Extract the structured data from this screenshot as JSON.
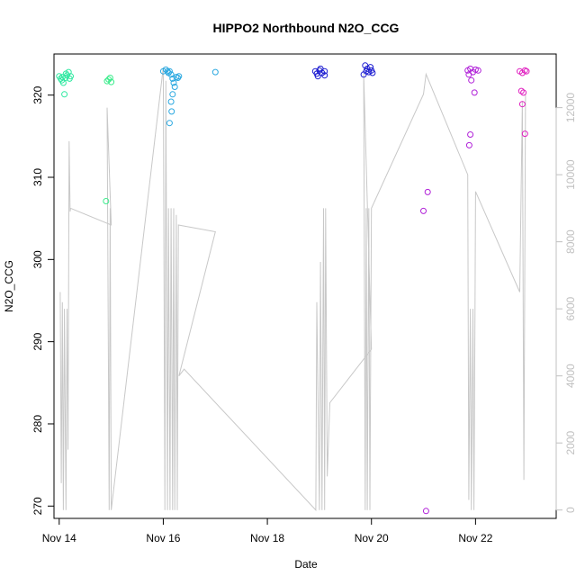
{
  "chart_data": {
    "type": "scatter",
    "title": "HIPPO2 Northbound N2O_CCG",
    "xlabel": "Date",
    "ylabel": "N2O_CCG",
    "x_unit": "days in November (day-of-month)",
    "xlim": [
      13.9,
      23.55
    ],
    "ylim": [
      268.5,
      325.0
    ],
    "x_ticks": [
      14,
      16,
      18,
      20,
      22
    ],
    "x_tick_labels": [
      "Nov 14",
      "Nov 16",
      "Nov 18",
      "Nov 20",
      "Nov 22"
    ],
    "y_ticks": [
      270,
      280,
      290,
      300,
      310,
      320
    ],
    "y_tick_labels": [
      "270",
      "280",
      "290",
      "300",
      "310",
      "320"
    ],
    "y2_ylim": [
      -250,
      13600
    ],
    "y2_ticks": [
      0,
      2000,
      4000,
      6000,
      8000,
      10000,
      12000
    ],
    "y2_tick_labels": [
      "0",
      "2000",
      "4000",
      "6000",
      "8000",
      "10000",
      "12000"
    ],
    "grid": false,
    "legend": "none",
    "colors": {
      "altitude_line": "#c8c8c8",
      "axis": "#000000",
      "right_axis": "#c0c0c0"
    },
    "series": [
      {
        "color": "#2ee8a0",
        "points": [
          [
            14.0,
            322.3
          ],
          [
            14.03,
            322.0
          ],
          [
            14.06,
            322.2
          ],
          [
            14.08,
            321.5
          ],
          [
            14.1,
            320.1
          ],
          [
            14.12,
            322.1
          ],
          [
            14.15,
            322.4
          ],
          [
            14.18,
            322.8
          ],
          [
            14.2,
            322.0
          ],
          [
            14.22,
            322.3
          ],
          [
            14.05,
            321.8
          ],
          [
            14.13,
            322.6
          ]
        ]
      },
      {
        "color": "#3cec8c",
        "points": [
          [
            14.92,
            321.7
          ],
          [
            14.95,
            321.9
          ],
          [
            14.98,
            322.1
          ],
          [
            15.0,
            321.6
          ],
          [
            14.9,
            307.1
          ]
        ]
      },
      {
        "color": "#2aa8e0",
        "points": [
          [
            16.0,
            322.9
          ],
          [
            16.05,
            323.1
          ],
          [
            16.1,
            322.7
          ],
          [
            16.12,
            322.9
          ],
          [
            16.15,
            322.5
          ],
          [
            16.18,
            322.0
          ],
          [
            16.2,
            321.5
          ],
          [
            16.22,
            321.0
          ],
          [
            16.18,
            320.1
          ],
          [
            16.15,
            319.2
          ],
          [
            16.16,
            318.0
          ],
          [
            16.12,
            316.6
          ],
          [
            16.28,
            322.1
          ],
          [
            16.3,
            322.3
          ],
          [
            16.25,
            322.2
          ],
          [
            16.08,
            322.9
          ],
          [
            17.0,
            322.8
          ]
        ]
      },
      {
        "color": "#1a1ad0",
        "points": [
          [
            18.92,
            322.9
          ],
          [
            18.95,
            322.6
          ],
          [
            19.0,
            323.0
          ],
          [
            19.05,
            322.7
          ],
          [
            19.1,
            322.9
          ],
          [
            19.02,
            323.2
          ],
          [
            18.97,
            322.3
          ],
          [
            19.1,
            322.4
          ],
          [
            19.88,
            323.6
          ],
          [
            19.92,
            323.2
          ],
          [
            19.95,
            322.8
          ],
          [
            20.0,
            323.0
          ],
          [
            19.85,
            322.5
          ],
          [
            19.9,
            322.9
          ],
          [
            19.98,
            323.4
          ],
          [
            20.02,
            322.7
          ]
        ]
      },
      {
        "color": "#b020d8",
        "points": [
          [
            21.0,
            305.9
          ],
          [
            21.08,
            308.2
          ],
          [
            21.05,
            269.4
          ],
          [
            21.85,
            323.0
          ],
          [
            21.9,
            323.2
          ],
          [
            21.95,
            322.8
          ],
          [
            22.0,
            323.1
          ],
          [
            22.05,
            323.0
          ],
          [
            21.87,
            322.5
          ],
          [
            21.92,
            321.8
          ],
          [
            21.98,
            320.3
          ],
          [
            21.9,
            315.2
          ],
          [
            21.88,
            313.9
          ]
        ]
      },
      {
        "color": "#e020c0",
        "points": [
          [
            22.85,
            322.9
          ],
          [
            22.9,
            322.7
          ],
          [
            22.95,
            323.0
          ],
          [
            22.88,
            320.5
          ],
          [
            22.92,
            320.3
          ],
          [
            22.9,
            318.9
          ],
          [
            22.95,
            315.3
          ],
          [
            22.98,
            322.9
          ]
        ]
      }
    ],
    "altitude_line": {
      "points": [
        [
          14.02,
          6500
        ],
        [
          14.04,
          800
        ],
        [
          14.06,
          6200
        ],
        [
          14.08,
          0
        ],
        [
          14.1,
          6000
        ],
        [
          14.13,
          0
        ],
        [
          14.15,
          6000
        ],
        [
          14.17,
          1800
        ],
        [
          14.19,
          11000
        ],
        [
          14.21,
          8900
        ],
        [
          14.22,
          9000
        ],
        [
          15.0,
          8500
        ],
        [
          14.92,
          12000
        ],
        [
          14.96,
          0
        ],
        [
          14.98,
          9000
        ],
        [
          15.0,
          0
        ],
        [
          16.0,
          13200
        ],
        [
          16.03,
          0
        ],
        [
          16.05,
          12800
        ],
        [
          16.08,
          0
        ],
        [
          16.1,
          9000
        ],
        [
          16.13,
          0
        ],
        [
          16.15,
          9000
        ],
        [
          16.18,
          0
        ],
        [
          16.2,
          9000
        ],
        [
          16.22,
          0
        ],
        [
          16.25,
          8800
        ],
        [
          16.27,
          0
        ],
        [
          16.29,
          8500
        ],
        [
          17.0,
          8300
        ],
        [
          16.3,
          4000
        ],
        [
          16.4,
          4200
        ],
        [
          18.93,
          0
        ],
        [
          18.95,
          6200
        ],
        [
          19.0,
          0
        ],
        [
          19.02,
          7400
        ],
        [
          19.05,
          0
        ],
        [
          19.08,
          9000
        ],
        [
          19.1,
          0
        ],
        [
          19.12,
          9000
        ],
        [
          19.15,
          1000
        ],
        [
          19.2,
          3200
        ],
        [
          20.0,
          4800
        ],
        [
          19.85,
          13000
        ],
        [
          19.88,
          0
        ],
        [
          19.9,
          9000
        ],
        [
          19.92,
          0
        ],
        [
          19.95,
          9000
        ],
        [
          19.97,
          0
        ],
        [
          20.0,
          9000
        ],
        [
          21.0,
          12400
        ],
        [
          21.05,
          13000
        ],
        [
          21.85,
          10000
        ],
        [
          21.87,
          300
        ],
        [
          21.9,
          6000
        ],
        [
          21.92,
          0
        ],
        [
          21.95,
          6000
        ],
        [
          21.97,
          0
        ],
        [
          21.99,
          6000
        ],
        [
          22.0,
          9500
        ],
        [
          22.85,
          6500
        ],
        [
          22.9,
          12200
        ],
        [
          22.93,
          900
        ],
        [
          22.96,
          12400
        ]
      ]
    }
  }
}
